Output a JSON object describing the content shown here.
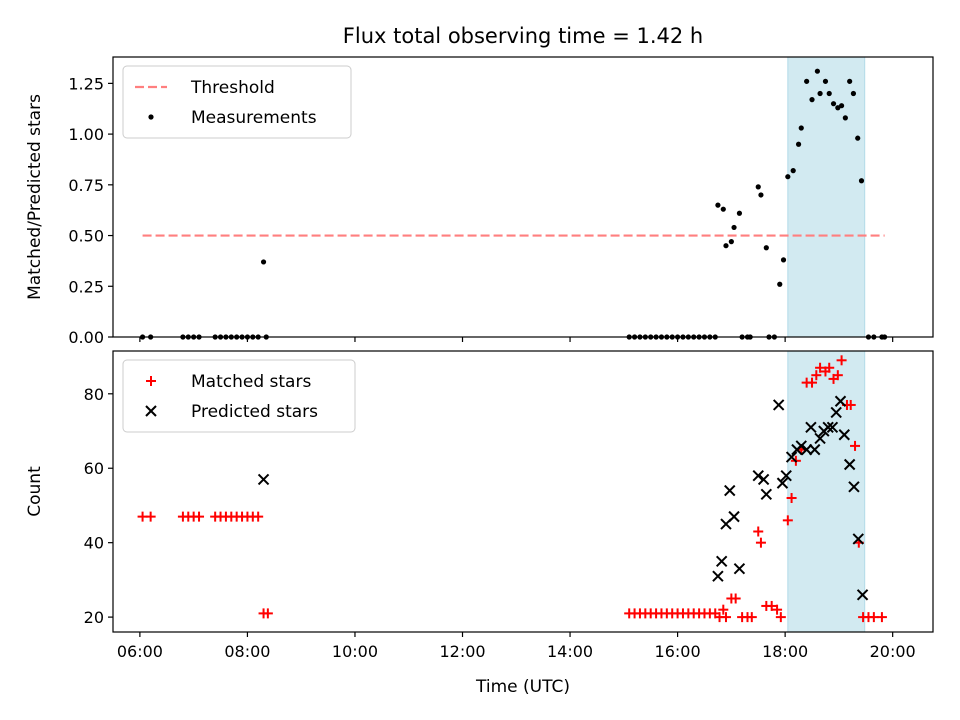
{
  "figure": {
    "title": "Flux total observing time = 1.42 h",
    "xlabel": "Time (UTC)"
  },
  "chart_data": [
    {
      "type": "scatter",
      "ylabel": "Matched/Predicted stars",
      "xlim": [
        5.5,
        20.75
      ],
      "ylim": [
        0,
        1.38
      ],
      "yticks": [
        0,
        0.25,
        0.5,
        0.75,
        1.0,
        1.25
      ],
      "ytick_labels": [
        "0.00",
        "0.25",
        "0.50",
        "0.75",
        "1.00",
        "1.25"
      ],
      "highlight_band": {
        "x0": 18.05,
        "x1": 19.48,
        "color": "#add8e6"
      },
      "legend": {
        "placement": "top-left"
      },
      "series": [
        {
          "name": "Threshold",
          "kind": "dashed-line",
          "color": "#ff7f7f",
          "points": [
            [
              6.05,
              0.5
            ],
            [
              19.85,
              0.5
            ]
          ]
        },
        {
          "name": "Measurements",
          "kind": "dot",
          "color": "#000000",
          "points": [
            [
              6.05,
              0
            ],
            [
              6.2,
              0
            ],
            [
              6.8,
              0
            ],
            [
              6.9,
              0
            ],
            [
              7.0,
              0
            ],
            [
              7.1,
              0
            ],
            [
              7.4,
              0
            ],
            [
              7.5,
              0
            ],
            [
              7.6,
              0
            ],
            [
              7.7,
              0
            ],
            [
              7.8,
              0
            ],
            [
              7.9,
              0
            ],
            [
              8.0,
              0
            ],
            [
              8.1,
              0
            ],
            [
              8.2,
              0
            ],
            [
              8.3,
              0.37
            ],
            [
              8.35,
              0
            ],
            [
              15.1,
              0
            ],
            [
              15.2,
              0
            ],
            [
              15.3,
              0
            ],
            [
              15.4,
              0
            ],
            [
              15.5,
              0
            ],
            [
              15.6,
              0
            ],
            [
              15.7,
              0
            ],
            [
              15.8,
              0
            ],
            [
              15.9,
              0
            ],
            [
              16.0,
              0
            ],
            [
              16.1,
              0
            ],
            [
              16.2,
              0
            ],
            [
              16.3,
              0
            ],
            [
              16.4,
              0
            ],
            [
              16.5,
              0
            ],
            [
              16.6,
              0
            ],
            [
              16.7,
              0
            ],
            [
              16.75,
              0.65
            ],
            [
              16.85,
              0.63
            ],
            [
              16.9,
              0.45
            ],
            [
              17.0,
              0.47
            ],
            [
              17.05,
              0.54
            ],
            [
              17.15,
              0.61
            ],
            [
              17.2,
              0
            ],
            [
              17.3,
              0
            ],
            [
              17.35,
              0
            ],
            [
              17.5,
              0.74
            ],
            [
              17.55,
              0.7
            ],
            [
              17.65,
              0.44
            ],
            [
              17.7,
              0
            ],
            [
              17.8,
              0
            ],
            [
              17.9,
              0.26
            ],
            [
              17.97,
              0.38
            ],
            [
              18.05,
              0.79
            ],
            [
              18.15,
              0.82
            ],
            [
              18.25,
              0.95
            ],
            [
              18.3,
              1.03
            ],
            [
              18.4,
              1.26
            ],
            [
              18.5,
              1.17
            ],
            [
              18.6,
              1.31
            ],
            [
              18.65,
              1.2
            ],
            [
              18.75,
              1.26
            ],
            [
              18.82,
              1.2
            ],
            [
              18.9,
              1.15
            ],
            [
              18.98,
              1.13
            ],
            [
              19.05,
              1.14
            ],
            [
              19.12,
              1.08
            ],
            [
              19.2,
              1.26
            ],
            [
              19.27,
              1.2
            ],
            [
              19.35,
              0.98
            ],
            [
              19.42,
              0.77
            ],
            [
              19.55,
              0
            ],
            [
              19.65,
              0
            ],
            [
              19.8,
              0
            ],
            [
              19.85,
              0
            ]
          ]
        }
      ]
    },
    {
      "type": "scatter",
      "ylabel": "Count",
      "xlim": [
        5.5,
        20.75
      ],
      "ylim": [
        16,
        91.5
      ],
      "yticks": [
        20,
        40,
        60,
        80
      ],
      "ytick_labels": [
        "20",
        "40",
        "60",
        "80"
      ],
      "xticks": [
        6,
        8,
        10,
        12,
        14,
        16,
        18,
        20
      ],
      "xtick_labels": [
        "06:00",
        "08:00",
        "10:00",
        "12:00",
        "14:00",
        "16:00",
        "18:00",
        "20:00"
      ],
      "highlight_band": {
        "x0": 18.05,
        "x1": 19.48,
        "color": "#add8e6"
      },
      "legend": {
        "placement": "top-left"
      },
      "series": [
        {
          "name": "Matched stars",
          "kind": "plus",
          "color": "#ff0000",
          "points": [
            [
              6.05,
              47
            ],
            [
              6.2,
              47
            ],
            [
              6.8,
              47
            ],
            [
              6.9,
              47
            ],
            [
              7.0,
              47
            ],
            [
              7.1,
              47
            ],
            [
              7.4,
              47
            ],
            [
              7.5,
              47
            ],
            [
              7.6,
              47
            ],
            [
              7.7,
              47
            ],
            [
              7.8,
              47
            ],
            [
              7.9,
              47
            ],
            [
              8.0,
              47
            ],
            [
              8.1,
              47
            ],
            [
              8.2,
              47
            ],
            [
              8.3,
              21
            ],
            [
              8.38,
              21
            ],
            [
              15.1,
              21
            ],
            [
              15.2,
              21
            ],
            [
              15.3,
              21
            ],
            [
              15.4,
              21
            ],
            [
              15.5,
              21
            ],
            [
              15.6,
              21
            ],
            [
              15.7,
              21
            ],
            [
              15.8,
              21
            ],
            [
              15.9,
              21
            ],
            [
              16.0,
              21
            ],
            [
              16.1,
              21
            ],
            [
              16.2,
              21
            ],
            [
              16.3,
              21
            ],
            [
              16.4,
              21
            ],
            [
              16.5,
              21
            ],
            [
              16.6,
              21
            ],
            [
              16.7,
              21
            ],
            [
              16.78,
              20
            ],
            [
              16.85,
              22
            ],
            [
              16.9,
              20
            ],
            [
              17.0,
              25
            ],
            [
              17.08,
              25
            ],
            [
              17.2,
              20
            ],
            [
              17.3,
              20
            ],
            [
              17.38,
              20
            ],
            [
              17.5,
              43
            ],
            [
              17.55,
              40
            ],
            [
              17.65,
              23
            ],
            [
              17.75,
              23
            ],
            [
              17.85,
              22
            ],
            [
              17.92,
              20
            ],
            [
              18.05,
              46
            ],
            [
              18.12,
              52
            ],
            [
              18.2,
              62
            ],
            [
              18.3,
              65
            ],
            [
              18.4,
              83
            ],
            [
              18.5,
              83
            ],
            [
              18.58,
              85
            ],
            [
              18.65,
              87
            ],
            [
              18.75,
              86
            ],
            [
              18.82,
              87
            ],
            [
              18.9,
              84
            ],
            [
              18.98,
              85
            ],
            [
              19.05,
              89
            ],
            [
              19.15,
              77
            ],
            [
              19.22,
              77
            ],
            [
              19.3,
              66
            ],
            [
              19.37,
              40
            ],
            [
              19.45,
              20
            ],
            [
              19.55,
              20
            ],
            [
              19.65,
              20
            ],
            [
              19.8,
              20
            ]
          ]
        },
        {
          "name": "Predicted stars",
          "kind": "cross",
          "color": "#000000",
          "points": [
            [
              8.3,
              57
            ],
            [
              16.75,
              31
            ],
            [
              16.82,
              35
            ],
            [
              16.9,
              45
            ],
            [
              16.97,
              54
            ],
            [
              17.05,
              47
            ],
            [
              17.15,
              33
            ],
            [
              17.5,
              58
            ],
            [
              17.6,
              57
            ],
            [
              17.65,
              53
            ],
            [
              17.88,
              77
            ],
            [
              17.95,
              56
            ],
            [
              18.02,
              58
            ],
            [
              18.12,
              63
            ],
            [
              18.22,
              65
            ],
            [
              18.3,
              66
            ],
            [
              18.4,
              65
            ],
            [
              18.48,
              71
            ],
            [
              18.55,
              65
            ],
            [
              18.65,
              68
            ],
            [
              18.72,
              70
            ],
            [
              18.8,
              71
            ],
            [
              18.88,
              71
            ],
            [
              18.95,
              75
            ],
            [
              19.03,
              78
            ],
            [
              19.1,
              69
            ],
            [
              19.2,
              61
            ],
            [
              19.28,
              55
            ],
            [
              19.36,
              41
            ],
            [
              19.44,
              26
            ]
          ]
        }
      ]
    }
  ]
}
